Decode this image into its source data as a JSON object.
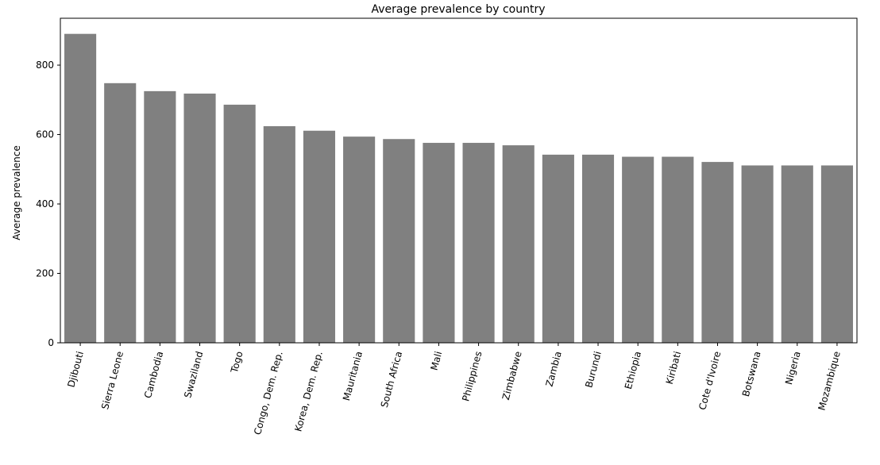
{
  "chart_data": {
    "type": "bar",
    "title": "Average prevalence by country",
    "xlabel": "",
    "ylabel": "Average prevalence",
    "ylim": [
      0,
      935
    ],
    "yticks": [
      0,
      200,
      400,
      600,
      800
    ],
    "categories": [
      "Djibouti",
      "Sierra Leone",
      "Cambodia",
      "Swaziland",
      "Togo",
      "Congo, Dem. Rep.",
      "Korea, Dem. Rep.",
      "Mauritania",
      "South Africa",
      "Mali",
      "Philippines",
      "Zimbabwe",
      "Zambia",
      "Burundi",
      "Ethiopia",
      "Kiribati",
      "Cote d'Ivoire",
      "Botswana",
      "Nigeria",
      "Mozambique"
    ],
    "values": [
      890,
      748,
      725,
      718,
      686,
      624,
      611,
      594,
      587,
      576,
      576,
      569,
      542,
      542,
      536,
      536,
      521,
      511,
      511,
      511
    ],
    "bar_color": "#808080",
    "grid": false,
    "legend": "none"
  }
}
